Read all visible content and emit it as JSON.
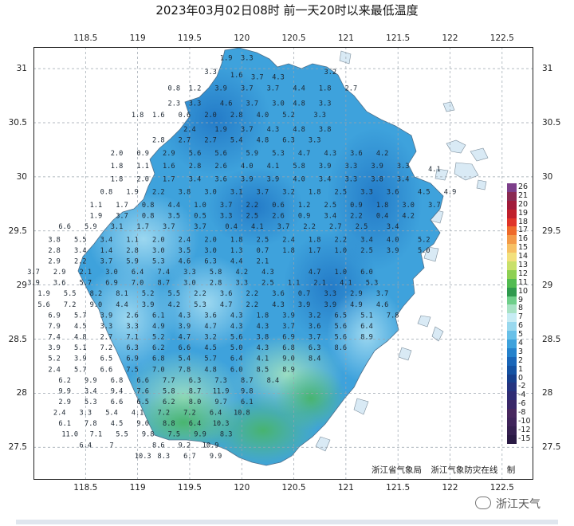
{
  "title": "2023年03月02日08时  前一天20时以来最低温度",
  "axes": {
    "lon_ticks": [
      "118.5",
      "119",
      "119.5",
      "120",
      "120.5",
      "121",
      "121.5",
      "122",
      "122.5"
    ],
    "lat_ticks": [
      "31",
      "30.5",
      "30",
      "29.5",
      "29",
      "28.5",
      "28",
      "27.5"
    ],
    "lon_range": [
      118.0,
      122.8
    ],
    "lat_range": [
      27.2,
      31.2
    ]
  },
  "credits": [
    "浙江省气象局",
    "浙江气象防灾在线",
    "制"
  ],
  "legend": {
    "labels": [
      "26",
      "21",
      "20",
      "19",
      "18",
      "17",
      "16",
      "15",
      "14",
      "13",
      "12",
      "11",
      "10",
      "9",
      "8",
      "7",
      "6",
      "5",
      "4",
      "3",
      "2",
      "1",
      "0",
      "-2",
      "-4",
      "-6",
      "-8",
      "-10",
      "-12",
      "-15"
    ],
    "colors": [
      "#7d3f8a",
      "#8a2a52",
      "#a01a3a",
      "#c0202c",
      "#e03428",
      "#ee6a2a",
      "#f39a48",
      "#f6c064",
      "#f2e07c",
      "#c9e06a",
      "#8ed054",
      "#52bb52",
      "#2f9a4e",
      "#6fcf8a",
      "#a7e2c4",
      "#c6ecf4",
      "#98d8ee",
      "#68c0e8",
      "#3ea2dc",
      "#2582cc",
      "#1a66b8",
      "#1552a2",
      "#173f8c",
      "#253480",
      "#2f2c74",
      "#3a2868",
      "#47275e",
      "#3f245a",
      "#352050",
      "#2a1a44"
    ]
  },
  "watermark": "浙江天气",
  "temperature_labels": [
    [
      119.85,
      31.08,
      "1.9"
    ],
    [
      120.05,
      31.08,
      "3.3"
    ],
    [
      119.7,
      30.95,
      "3.3"
    ],
    [
      119.95,
      30.92,
      "1.6"
    ],
    [
      120.15,
      30.9,
      "3.7"
    ],
    [
      120.35,
      30.9,
      "4.3"
    ],
    [
      120.85,
      30.95,
      "3.2"
    ],
    [
      119.35,
      30.8,
      "0.8"
    ],
    [
      119.55,
      30.8,
      "1.2"
    ],
    [
      119.8,
      30.8,
      "3.9"
    ],
    [
      120.05,
      30.8,
      "3.7"
    ],
    [
      120.3,
      30.8,
      "3.7"
    ],
    [
      120.55,
      30.8,
      "4.4"
    ],
    [
      120.8,
      30.8,
      "1.8"
    ],
    [
      121.05,
      30.8,
      "2.7"
    ],
    [
      119.35,
      30.66,
      "2.3"
    ],
    [
      119.55,
      30.66,
      "3.3"
    ],
    [
      119.85,
      30.66,
      "4.6"
    ],
    [
      120.1,
      30.66,
      "3.7"
    ],
    [
      120.35,
      30.66,
      "3.0"
    ],
    [
      120.55,
      30.66,
      "4.8"
    ],
    [
      120.8,
      30.66,
      "3.3"
    ],
    [
      119.0,
      30.55,
      "1.8"
    ],
    [
      119.2,
      30.55,
      "1.6"
    ],
    [
      119.45,
      30.55,
      "0.6"
    ],
    [
      119.7,
      30.55,
      "2.0"
    ],
    [
      119.95,
      30.55,
      "2.8"
    ],
    [
      120.2,
      30.55,
      "4.0"
    ],
    [
      120.45,
      30.55,
      "5.2"
    ],
    [
      120.75,
      30.55,
      "3.3"
    ],
    [
      119.5,
      30.42,
      "2.4"
    ],
    [
      119.8,
      30.42,
      "1.9"
    ],
    [
      120.05,
      30.42,
      "3.7"
    ],
    [
      120.3,
      30.42,
      "4.3"
    ],
    [
      120.55,
      30.42,
      "4.8"
    ],
    [
      120.8,
      30.42,
      "3.8"
    ],
    [
      119.2,
      30.32,
      "2.8"
    ],
    [
      119.45,
      30.32,
      "2.7"
    ],
    [
      119.7,
      30.32,
      "2.7"
    ],
    [
      119.95,
      30.32,
      "5.4"
    ],
    [
      120.2,
      30.32,
      "4.8"
    ],
    [
      120.45,
      30.32,
      "6.3"
    ],
    [
      120.7,
      30.32,
      "3.3"
    ],
    [
      118.8,
      30.2,
      "2.0"
    ],
    [
      119.05,
      30.2,
      "0.9"
    ],
    [
      119.3,
      30.2,
      "2.9"
    ],
    [
      119.55,
      30.2,
      "5.6"
    ],
    [
      119.8,
      30.2,
      "5.6"
    ],
    [
      120.1,
      30.2,
      "5.9"
    ],
    [
      120.35,
      30.2,
      "5.3"
    ],
    [
      120.6,
      30.2,
      "4.7"
    ],
    [
      120.85,
      30.2,
      "4.3"
    ],
    [
      121.1,
      30.2,
      "3.6"
    ],
    [
      121.35,
      30.2,
      "4.2"
    ],
    [
      118.8,
      30.08,
      "1.8"
    ],
    [
      119.05,
      30.08,
      "1.1"
    ],
    [
      119.3,
      30.08,
      "1.6"
    ],
    [
      119.55,
      30.08,
      "2.8"
    ],
    [
      119.8,
      30.08,
      "2.6"
    ],
    [
      120.05,
      30.08,
      "4.0"
    ],
    [
      120.3,
      30.08,
      "4.1"
    ],
    [
      120.55,
      30.08,
      "5.8"
    ],
    [
      120.8,
      30.08,
      "3.9"
    ],
    [
      121.05,
      30.08,
      "3.3"
    ],
    [
      121.3,
      30.08,
      "3.9"
    ],
    [
      121.55,
      30.08,
      "3.3"
    ],
    [
      121.85,
      30.05,
      "4.1"
    ],
    [
      118.8,
      29.96,
      "1.8"
    ],
    [
      119.05,
      29.96,
      "2.0"
    ],
    [
      119.3,
      29.96,
      "1.7"
    ],
    [
      119.55,
      29.96,
      "3.4"
    ],
    [
      119.8,
      29.96,
      "3.6"
    ],
    [
      120.05,
      29.96,
      "3.9"
    ],
    [
      120.3,
      29.96,
      "3.9"
    ],
    [
      120.55,
      29.96,
      "4.0"
    ],
    [
      120.8,
      29.96,
      "3.4"
    ],
    [
      121.05,
      29.96,
      "3.3"
    ],
    [
      121.3,
      29.96,
      "3.8"
    ],
    [
      121.55,
      29.96,
      "3.4"
    ],
    [
      118.7,
      29.84,
      "0.8"
    ],
    [
      118.95,
      29.84,
      "1.9"
    ],
    [
      119.2,
      29.84,
      "2.2"
    ],
    [
      119.45,
      29.84,
      "3.8"
    ],
    [
      119.7,
      29.84,
      "3.0"
    ],
    [
      119.95,
      29.84,
      "3.1"
    ],
    [
      120.2,
      29.84,
      "3.7"
    ],
    [
      120.45,
      29.84,
      "3.2"
    ],
    [
      120.7,
      29.84,
      "1.8"
    ],
    [
      120.95,
      29.84,
      "2.5"
    ],
    [
      121.2,
      29.84,
      "3.3"
    ],
    [
      121.45,
      29.84,
      "3.6"
    ],
    [
      121.75,
      29.84,
      "4.5"
    ],
    [
      122.0,
      29.84,
      "4.9"
    ],
    [
      118.6,
      29.72,
      "1.1"
    ],
    [
      118.85,
      29.72,
      "1.7"
    ],
    [
      119.1,
      29.72,
      "0.8"
    ],
    [
      119.35,
      29.72,
      "4.4"
    ],
    [
      119.6,
      29.72,
      "1.0"
    ],
    [
      119.85,
      29.72,
      "3.7"
    ],
    [
      120.1,
      29.72,
      "2.2"
    ],
    [
      120.35,
      29.72,
      "0.6"
    ],
    [
      120.6,
      29.72,
      "1.2"
    ],
    [
      120.85,
      29.72,
      "2.5"
    ],
    [
      121.1,
      29.72,
      "0.9"
    ],
    [
      121.35,
      29.72,
      "1.8"
    ],
    [
      121.6,
      29.72,
      "3.0"
    ],
    [
      121.85,
      29.72,
      "3.7"
    ],
    [
      118.6,
      29.62,
      "1.9"
    ],
    [
      118.85,
      29.62,
      "3.7"
    ],
    [
      119.1,
      29.62,
      "0.8"
    ],
    [
      119.35,
      29.62,
      "3.5"
    ],
    [
      119.6,
      29.62,
      "0.5"
    ],
    [
      119.85,
      29.62,
      "3.3"
    ],
    [
      120.1,
      29.62,
      "2.5"
    ],
    [
      120.35,
      29.62,
      "2.6"
    ],
    [
      120.6,
      29.62,
      "0.9"
    ],
    [
      120.85,
      29.62,
      "3.4"
    ],
    [
      121.1,
      29.62,
      "2.2"
    ],
    [
      121.35,
      29.62,
      "0.4"
    ],
    [
      121.6,
      29.62,
      "4.2"
    ],
    [
      118.3,
      29.52,
      "6.6"
    ],
    [
      118.55,
      29.52,
      "5.9"
    ],
    [
      118.8,
      29.52,
      "3.1"
    ],
    [
      119.05,
      29.52,
      "1.7"
    ],
    [
      119.3,
      29.52,
      "3.7"
    ],
    [
      119.6,
      29.52,
      "3.7"
    ],
    [
      119.9,
      29.52,
      "0.4"
    ],
    [
      120.15,
      29.52,
      "4.1"
    ],
    [
      120.4,
      29.52,
      "3.7"
    ],
    [
      120.65,
      29.52,
      "2.2"
    ],
    [
      120.9,
      29.52,
      "2.7"
    ],
    [
      121.15,
      29.52,
      "2.5"
    ],
    [
      121.45,
      29.52,
      "3.4"
    ],
    [
      118.2,
      29.4,
      "3.8"
    ],
    [
      118.45,
      29.4,
      "5.5"
    ],
    [
      118.7,
      29.4,
      "3.4"
    ],
    [
      118.95,
      29.4,
      "1.1"
    ],
    [
      119.2,
      29.4,
      "2.0"
    ],
    [
      119.45,
      29.4,
      "2.4"
    ],
    [
      119.7,
      29.4,
      "2.0"
    ],
    [
      119.95,
      29.4,
      "1.8"
    ],
    [
      120.2,
      29.4,
      "2.5"
    ],
    [
      120.45,
      29.4,
      "2.4"
    ],
    [
      120.7,
      29.4,
      "1.8"
    ],
    [
      120.95,
      29.4,
      "2.2"
    ],
    [
      121.2,
      29.4,
      "3.4"
    ],
    [
      121.45,
      29.4,
      "4.0"
    ],
    [
      121.75,
      29.4,
      "5.2"
    ],
    [
      118.2,
      29.3,
      "2.8"
    ],
    [
      118.45,
      29.3,
      "3.4"
    ],
    [
      118.7,
      29.3,
      "1.4"
    ],
    [
      118.95,
      29.3,
      "2.8"
    ],
    [
      119.2,
      29.3,
      "3.0"
    ],
    [
      119.45,
      29.3,
      "3.5"
    ],
    [
      119.7,
      29.3,
      "3.0"
    ],
    [
      119.95,
      29.3,
      "1.3"
    ],
    [
      120.2,
      29.3,
      "0.7"
    ],
    [
      120.45,
      29.3,
      "1.8"
    ],
    [
      120.7,
      29.3,
      "1.7"
    ],
    [
      120.95,
      29.3,
      "1.0"
    ],
    [
      121.2,
      29.3,
      "2.5"
    ],
    [
      121.45,
      29.3,
      "3.9"
    ],
    [
      121.75,
      29.3,
      "5.0"
    ],
    [
      118.2,
      29.2,
      "2.9"
    ],
    [
      118.45,
      29.2,
      "2.2"
    ],
    [
      118.7,
      29.2,
      "3.7"
    ],
    [
      118.95,
      29.2,
      "5.9"
    ],
    [
      119.2,
      29.2,
      "5.3"
    ],
    [
      119.45,
      29.2,
      "4.6"
    ],
    [
      119.7,
      29.2,
      "6.3"
    ],
    [
      119.95,
      29.2,
      "4.4"
    ],
    [
      120.2,
      29.2,
      "2.1"
    ],
    [
      118.0,
      29.1,
      "3.7"
    ],
    [
      118.25,
      29.1,
      "2.9"
    ],
    [
      118.5,
      29.1,
      "2.1"
    ],
    [
      118.75,
      29.1,
      "3.0"
    ],
    [
      119.0,
      29.1,
      "6.4"
    ],
    [
      119.25,
      29.1,
      "7.4"
    ],
    [
      119.5,
      29.1,
      "3.3"
    ],
    [
      119.75,
      29.1,
      "5.8"
    ],
    [
      120.0,
      29.1,
      "4.2"
    ],
    [
      120.25,
      29.1,
      "4.3"
    ],
    [
      120.7,
      29.1,
      "4.7"
    ],
    [
      120.95,
      29.1,
      "1.0"
    ],
    [
      121.2,
      29.1,
      "6.0"
    ],
    [
      118.0,
      29.0,
      "3.9"
    ],
    [
      118.25,
      29.0,
      "3.6"
    ],
    [
      118.5,
      29.0,
      "5.7"
    ],
    [
      118.75,
      29.0,
      "6.9"
    ],
    [
      119.0,
      29.0,
      "7.0"
    ],
    [
      119.25,
      29.0,
      "8.7"
    ],
    [
      119.5,
      29.0,
      "3.0"
    ],
    [
      119.75,
      29.0,
      "2.8"
    ],
    [
      120.0,
      29.0,
      "3.3"
    ],
    [
      120.25,
      29.0,
      "2.5"
    ],
    [
      120.5,
      29.0,
      "1.1"
    ],
    [
      120.75,
      29.0,
      "2.1"
    ],
    [
      121.0,
      29.0,
      "4.1"
    ],
    [
      121.25,
      29.0,
      "5.3"
    ],
    [
      118.1,
      28.9,
      "1.9"
    ],
    [
      118.35,
      28.9,
      "5.5"
    ],
    [
      118.6,
      28.9,
      "8.2"
    ],
    [
      118.85,
      28.9,
      "8.1"
    ],
    [
      119.1,
      28.9,
      "5.2"
    ],
    [
      119.35,
      28.9,
      "5.5"
    ],
    [
      119.6,
      28.9,
      "2.2"
    ],
    [
      119.85,
      28.9,
      "3.6"
    ],
    [
      120.1,
      28.9,
      "2.2"
    ],
    [
      120.35,
      28.9,
      "3.6"
    ],
    [
      120.6,
      28.9,
      "0.7"
    ],
    [
      120.85,
      28.9,
      "3.3"
    ],
    [
      121.1,
      28.9,
      "2.9"
    ],
    [
      121.35,
      28.9,
      "3.7"
    ],
    [
      118.1,
      28.8,
      "5.6"
    ],
    [
      118.35,
      28.8,
      "7.2"
    ],
    [
      118.6,
      28.8,
      "9.0"
    ],
    [
      118.85,
      28.8,
      "4.4"
    ],
    [
      119.1,
      28.8,
      "3.9"
    ],
    [
      119.35,
      28.8,
      "4.2"
    ],
    [
      119.6,
      28.8,
      "5.3"
    ],
    [
      119.85,
      28.8,
      "4.7"
    ],
    [
      120.1,
      28.8,
      "2.2"
    ],
    [
      120.35,
      28.8,
      "4.3"
    ],
    [
      120.6,
      28.8,
      "3.9"
    ],
    [
      120.85,
      28.8,
      "3.9"
    ],
    [
      121.1,
      28.8,
      "4.9"
    ],
    [
      121.35,
      28.8,
      "4.6"
    ],
    [
      118.2,
      28.7,
      "6.9"
    ],
    [
      118.45,
      28.7,
      "5.7"
    ],
    [
      118.7,
      28.7,
      "3.9"
    ],
    [
      118.95,
      28.7,
      "2.6"
    ],
    [
      119.2,
      28.7,
      "6.1"
    ],
    [
      119.45,
      28.7,
      "4.3"
    ],
    [
      119.7,
      28.7,
      "3.6"
    ],
    [
      119.95,
      28.7,
      "4.3"
    ],
    [
      120.2,
      28.7,
      "1.8"
    ],
    [
      120.45,
      28.7,
      "3.9"
    ],
    [
      120.7,
      28.7,
      "3.2"
    ],
    [
      120.95,
      28.7,
      "6.5"
    ],
    [
      121.2,
      28.7,
      "5.1"
    ],
    [
      121.45,
      28.7,
      "7.8"
    ],
    [
      118.2,
      28.6,
      "7.9"
    ],
    [
      118.45,
      28.6,
      "4.5"
    ],
    [
      118.7,
      28.6,
      "3.3"
    ],
    [
      118.95,
      28.6,
      "3.3"
    ],
    [
      119.2,
      28.6,
      "4.9"
    ],
    [
      119.45,
      28.6,
      "3.9"
    ],
    [
      119.7,
      28.6,
      "4.7"
    ],
    [
      119.95,
      28.6,
      "4.3"
    ],
    [
      120.2,
      28.6,
      "4.3"
    ],
    [
      120.45,
      28.6,
      "3.7"
    ],
    [
      120.7,
      28.6,
      "3.6"
    ],
    [
      120.95,
      28.6,
      "5.6"
    ],
    [
      121.2,
      28.6,
      "6.4"
    ],
    [
      118.2,
      28.5,
      "7.4"
    ],
    [
      118.45,
      28.5,
      "4.8"
    ],
    [
      118.7,
      28.5,
      "2.7"
    ],
    [
      118.95,
      28.5,
      "7.1"
    ],
    [
      119.2,
      28.5,
      "5.2"
    ],
    [
      119.45,
      28.5,
      "4.7"
    ],
    [
      119.7,
      28.5,
      "3.2"
    ],
    [
      119.95,
      28.5,
      "5.6"
    ],
    [
      120.2,
      28.5,
      "3.8"
    ],
    [
      120.45,
      28.5,
      "6.9"
    ],
    [
      120.7,
      28.5,
      "3.7"
    ],
    [
      120.95,
      28.5,
      "5.6"
    ],
    [
      121.2,
      28.5,
      "8.9"
    ],
    [
      118.2,
      28.4,
      "3.9"
    ],
    [
      118.45,
      28.4,
      "5.1"
    ],
    [
      118.7,
      28.4,
      "7.2"
    ],
    [
      118.95,
      28.4,
      "6.3"
    ],
    [
      119.2,
      28.4,
      "6.2"
    ],
    [
      119.45,
      28.4,
      "6.6"
    ],
    [
      119.7,
      28.4,
      "4.5"
    ],
    [
      119.95,
      28.4,
      "5.0"
    ],
    [
      120.2,
      28.4,
      "4.3"
    ],
    [
      120.45,
      28.4,
      "6.8"
    ],
    [
      120.7,
      28.4,
      "6.3"
    ],
    [
      120.95,
      28.4,
      "8.6"
    ],
    [
      118.2,
      28.3,
      "5.2"
    ],
    [
      118.45,
      28.3,
      "3.9"
    ],
    [
      118.7,
      28.3,
      "6.5"
    ],
    [
      118.95,
      28.3,
      "6.9"
    ],
    [
      119.2,
      28.3,
      "6.8"
    ],
    [
      119.45,
      28.3,
      "5.4"
    ],
    [
      119.7,
      28.3,
      "5.7"
    ],
    [
      119.95,
      28.3,
      "6.4"
    ],
    [
      120.2,
      28.3,
      "4.1"
    ],
    [
      120.45,
      28.3,
      "9.0"
    ],
    [
      120.7,
      28.3,
      "8.4"
    ],
    [
      118.2,
      28.2,
      "2.4"
    ],
    [
      118.45,
      28.2,
      "5.7"
    ],
    [
      118.7,
      28.2,
      "6.6"
    ],
    [
      118.95,
      28.2,
      "7.5"
    ],
    [
      119.2,
      28.2,
      "7.0"
    ],
    [
      119.45,
      28.2,
      "7.8"
    ],
    [
      119.7,
      28.2,
      "4.8"
    ],
    [
      119.95,
      28.2,
      "6.0"
    ],
    [
      120.2,
      28.2,
      "8.5"
    ],
    [
      120.45,
      28.2,
      "8.9"
    ],
    [
      118.3,
      28.1,
      "6.2"
    ],
    [
      118.55,
      28.1,
      "9.9"
    ],
    [
      118.8,
      28.1,
      "6.8"
    ],
    [
      119.05,
      28.1,
      "6.6"
    ],
    [
      119.3,
      28.1,
      "7.7"
    ],
    [
      119.55,
      28.1,
      "6.3"
    ],
    [
      119.8,
      28.1,
      "7.3"
    ],
    [
      120.05,
      28.1,
      "8.7"
    ],
    [
      120.3,
      28.1,
      "8.4"
    ],
    [
      118.3,
      28.0,
      "9.9"
    ],
    [
      118.55,
      28.0,
      "3.4"
    ],
    [
      118.8,
      28.0,
      "9.4"
    ],
    [
      119.05,
      28.0,
      "7.6"
    ],
    [
      119.3,
      28.0,
      "5.8"
    ],
    [
      119.55,
      28.0,
      "8.7"
    ],
    [
      119.8,
      28.0,
      "11.9"
    ],
    [
      120.05,
      28.0,
      "9.8"
    ],
    [
      118.3,
      27.9,
      "2.9"
    ],
    [
      118.55,
      27.9,
      "5.3"
    ],
    [
      118.8,
      27.9,
      "6.6"
    ],
    [
      119.05,
      27.9,
      "6.5"
    ],
    [
      119.3,
      27.9,
      "6.2"
    ],
    [
      119.55,
      27.9,
      "8.0"
    ],
    [
      119.8,
      27.9,
      "9.7"
    ],
    [
      120.05,
      27.9,
      "6.1"
    ],
    [
      118.25,
      27.8,
      "2.4"
    ],
    [
      118.5,
      27.8,
      "3.3"
    ],
    [
      118.75,
      27.8,
      "5.4"
    ],
    [
      119.0,
      27.8,
      "4.1"
    ],
    [
      119.25,
      27.8,
      "7.2"
    ],
    [
      119.5,
      27.8,
      "7.2"
    ],
    [
      119.75,
      27.8,
      "6.4"
    ],
    [
      120.0,
      27.8,
      "10.8"
    ],
    [
      118.3,
      27.7,
      "6.1"
    ],
    [
      118.55,
      27.7,
      "7.8"
    ],
    [
      118.8,
      27.7,
      "4.5"
    ],
    [
      119.05,
      27.7,
      "9.0"
    ],
    [
      119.3,
      27.7,
      "8.8"
    ],
    [
      119.55,
      27.7,
      "6.4"
    ],
    [
      119.8,
      27.7,
      "10.3"
    ],
    [
      118.35,
      27.6,
      "11.0"
    ],
    [
      118.6,
      27.6,
      "7.1"
    ],
    [
      118.85,
      27.6,
      "5.5"
    ],
    [
      119.1,
      27.6,
      "9.8"
    ],
    [
      119.35,
      27.6,
      "7.5"
    ],
    [
      119.6,
      27.6,
      "9.9"
    ],
    [
      119.85,
      27.6,
      "8.3"
    ],
    [
      118.5,
      27.5,
      "6.4"
    ],
    [
      118.75,
      27.5,
      "7"
    ],
    [
      119.2,
      27.5,
      "8.6"
    ],
    [
      119.45,
      27.5,
      "9.2"
    ],
    [
      119.7,
      27.5,
      "10.9"
    ],
    [
      119.05,
      27.4,
      "10.3"
    ],
    [
      119.25,
      27.4,
      "8.3"
    ],
    [
      119.5,
      27.4,
      "6.7"
    ],
    [
      119.75,
      27.4,
      "9.9"
    ]
  ]
}
